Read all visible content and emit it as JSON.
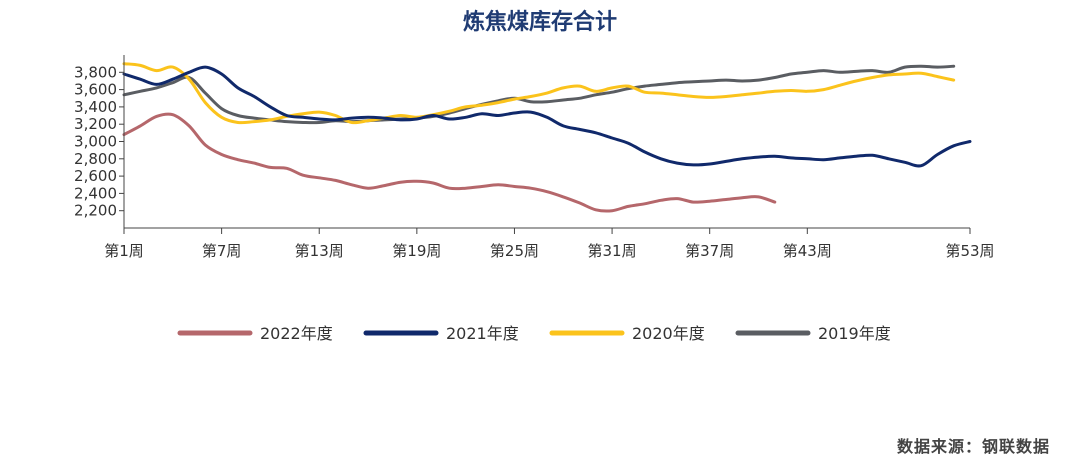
{
  "source": "数据来源：钢联数据",
  "chart_data": {
    "type": "line",
    "title": "炼焦煤库存合计",
    "xlabel": "",
    "ylabel": "",
    "x_range": [
      1,
      53
    ],
    "ylim": [
      2000,
      4000
    ],
    "x_ticks": [
      1,
      7,
      13,
      19,
      25,
      31,
      37,
      43,
      53
    ],
    "x_tick_labels": [
      "第1周",
      "第7周",
      "第13周",
      "第19周",
      "第25周",
      "第31周",
      "第37周",
      "第43周",
      "第53周"
    ],
    "y_ticks": [
      2200,
      2400,
      2600,
      2800,
      3000,
      3200,
      3400,
      3600,
      3800
    ],
    "y_tick_labels": [
      "2,200",
      "2,400",
      "2,600",
      "2,800",
      "3,000",
      "3,200",
      "3,400",
      "3,600",
      "3,800"
    ],
    "grid": false,
    "legend_position": "bottom",
    "series": [
      {
        "name": "2022年度",
        "color": "#b5676b",
        "x": [
          1,
          2,
          3,
          4,
          5,
          6,
          7,
          8,
          9,
          10,
          11,
          12,
          13,
          14,
          15,
          16,
          17,
          18,
          19,
          20,
          21,
          22,
          23,
          24,
          25,
          26,
          27,
          28,
          29,
          30,
          31,
          32,
          33,
          34,
          35,
          36,
          37,
          38,
          39,
          40,
          41
        ],
        "values": [
          3080,
          3180,
          3290,
          3310,
          3180,
          2960,
          2850,
          2790,
          2750,
          2700,
          2690,
          2610,
          2580,
          2550,
          2500,
          2460,
          2490,
          2530,
          2540,
          2520,
          2460,
          2460,
          2480,
          2500,
          2480,
          2460,
          2420,
          2360,
          2290,
          2210,
          2200,
          2250,
          2280,
          2320,
          2340,
          2300,
          2310,
          2330,
          2350,
          2360,
          2300
        ]
      },
      {
        "name": "2021年度",
        "color": "#10296b",
        "x": [
          1,
          2,
          3,
          4,
          5,
          6,
          7,
          8,
          9,
          10,
          11,
          12,
          13,
          14,
          15,
          16,
          17,
          18,
          19,
          20,
          21,
          22,
          23,
          24,
          25,
          26,
          27,
          28,
          29,
          30,
          31,
          32,
          33,
          34,
          35,
          36,
          37,
          38,
          39,
          40,
          41,
          42,
          43,
          44,
          45,
          46,
          47,
          48,
          49,
          50,
          51,
          52,
          53
        ],
        "values": [
          3780,
          3720,
          3660,
          3720,
          3800,
          3860,
          3780,
          3620,
          3520,
          3400,
          3300,
          3280,
          3260,
          3250,
          3270,
          3280,
          3270,
          3250,
          3260,
          3300,
          3260,
          3280,
          3320,
          3300,
          3330,
          3340,
          3280,
          3180,
          3140,
          3100,
          3040,
          2980,
          2880,
          2800,
          2750,
          2730,
          2740,
          2770,
          2800,
          2820,
          2830,
          2810,
          2800,
          2790,
          2810,
          2830,
          2840,
          2800,
          2760,
          2720,
          2850,
          2950,
          3000
        ]
      },
      {
        "name": "2020年度",
        "color": "#fbc31c",
        "x": [
          1,
          2,
          3,
          4,
          5,
          6,
          7,
          8,
          9,
          10,
          11,
          12,
          13,
          14,
          15,
          16,
          17,
          18,
          19,
          20,
          21,
          22,
          23,
          24,
          25,
          26,
          27,
          28,
          29,
          30,
          31,
          32,
          33,
          34,
          35,
          36,
          37,
          38,
          39,
          40,
          41,
          42,
          43,
          44,
          45,
          46,
          47,
          48,
          49,
          50,
          51,
          52
        ],
        "values": [
          3900,
          3880,
          3820,
          3860,
          3720,
          3450,
          3280,
          3220,
          3230,
          3250,
          3290,
          3320,
          3340,
          3300,
          3220,
          3240,
          3270,
          3300,
          3280,
          3310,
          3350,
          3400,
          3420,
          3450,
          3490,
          3520,
          3560,
          3620,
          3640,
          3580,
          3620,
          3640,
          3570,
          3560,
          3540,
          3520,
          3510,
          3520,
          3540,
          3560,
          3580,
          3590,
          3580,
          3600,
          3650,
          3700,
          3740,
          3770,
          3780,
          3790,
          3750,
          3710
        ]
      },
      {
        "name": "2019年度",
        "color": "#5a5d62",
        "x": [
          1,
          2,
          3,
          4,
          5,
          6,
          7,
          8,
          9,
          10,
          11,
          12,
          13,
          14,
          15,
          16,
          17,
          18,
          19,
          20,
          21,
          22,
          23,
          24,
          25,
          26,
          27,
          28,
          29,
          30,
          31,
          32,
          33,
          34,
          35,
          36,
          37,
          38,
          39,
          40,
          41,
          42,
          43,
          44,
          45,
          46,
          47,
          48,
          49,
          50,
          51,
          52
        ],
        "values": [
          3540,
          3580,
          3620,
          3680,
          3740,
          3560,
          3380,
          3300,
          3270,
          3250,
          3230,
          3220,
          3220,
          3240,
          3230,
          3240,
          3250,
          3260,
          3270,
          3290,
          3330,
          3380,
          3430,
          3470,
          3500,
          3460,
          3460,
          3480,
          3500,
          3540,
          3570,
          3610,
          3640,
          3660,
          3680,
          3690,
          3700,
          3710,
          3700,
          3710,
          3740,
          3780,
          3800,
          3820,
          3800,
          3810,
          3820,
          3800,
          3860,
          3870,
          3860,
          3870
        ]
      }
    ]
  }
}
